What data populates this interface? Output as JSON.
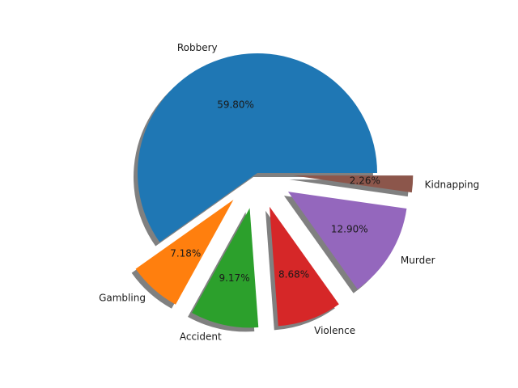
{
  "chart_data": {
    "type": "pie",
    "title": "",
    "slices": [
      {
        "label": "Robbery",
        "value": 59.8,
        "pct_label": "59.80%",
        "color": "#1f77b4",
        "explode": 0.0
      },
      {
        "label": "Gambling",
        "value": 7.18,
        "pct_label": "7.18%",
        "color": "#ff7f0e",
        "explode": 0.3
      },
      {
        "label": "Accident",
        "value": 9.17,
        "pct_label": "9.17%",
        "color": "#2ca02c",
        "explode": 0.3
      },
      {
        "label": "Violence",
        "value": 8.68,
        "pct_label": "8.68%",
        "color": "#d62728",
        "explode": 0.3
      },
      {
        "label": "Murder",
        "value": 12.9,
        "pct_label": "12.90%",
        "color": "#9467bd",
        "explode": 0.3
      },
      {
        "label": "Kidnapping",
        "value": 2.26,
        "pct_label": "2.26%",
        "color": "#8c564b",
        "explode": 0.3
      }
    ],
    "start_angle_deg": 0,
    "direction": "counterclockwise",
    "shadow": true,
    "legend": "none"
  }
}
